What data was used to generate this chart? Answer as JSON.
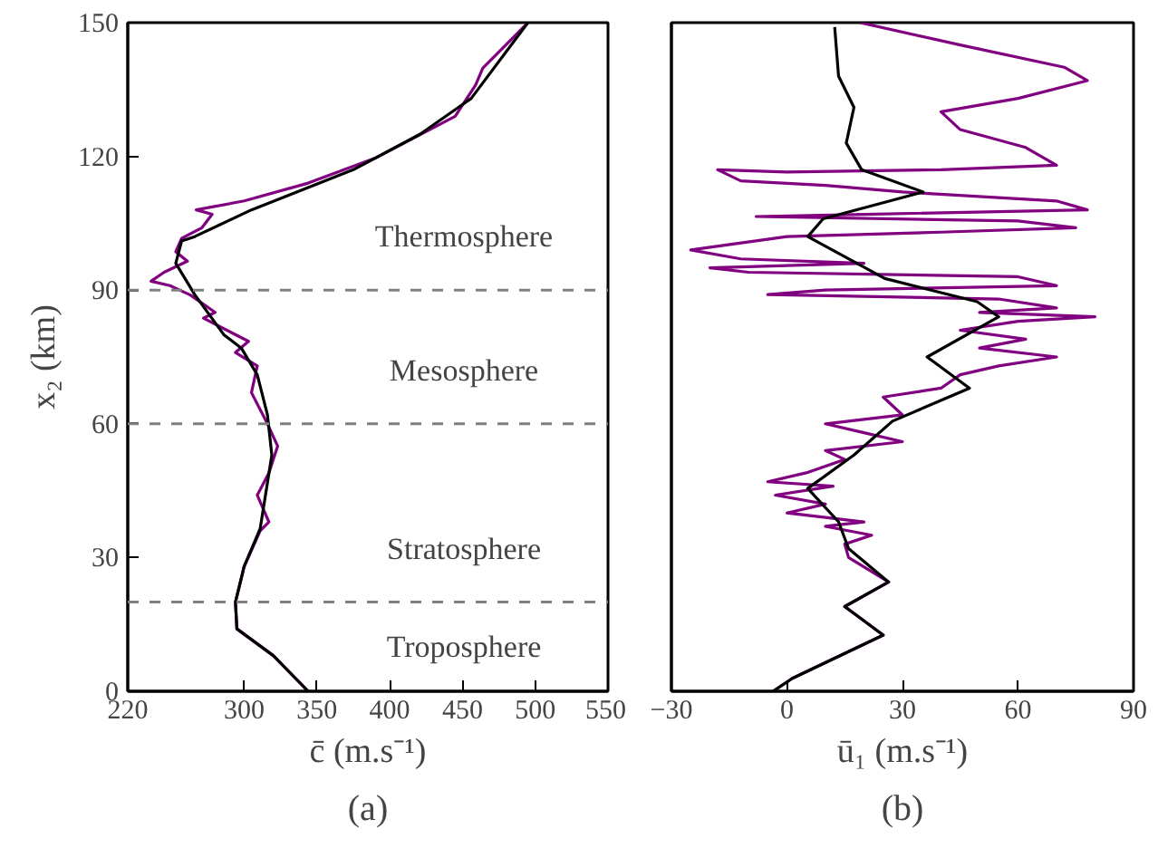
{
  "chart_data": [
    {
      "type": "line",
      "xlabel": "c̄ (m.s⁻¹)",
      "ylabel": "x₂ (km)",
      "subtitle": "(a)",
      "xlim": [
        220,
        550
      ],
      "xticks": [
        220,
        300,
        350,
        400,
        450,
        500,
        550
      ],
      "ylim": [
        0,
        150
      ],
      "yticks": [
        0,
        30,
        60,
        90,
        120,
        150
      ],
      "grid": false,
      "series": [
        {
          "color": "#800080",
          "x": [
            344,
            320,
            295,
            294,
            300,
            311,
            317,
            309,
            317,
            323,
            316,
            305,
            309,
            294,
            303,
            272,
            280,
            263,
            249,
            236,
            245,
            261,
            253,
            257,
            271,
            278,
            267,
            300,
            344,
            390,
            445,
            459,
            464,
            495
          ],
          "values": [
            0,
            8,
            14,
            20,
            28,
            36,
            38,
            44,
            49,
            55,
            60,
            67,
            73,
            76,
            78.5,
            83.7,
            85,
            88.9,
            91,
            92,
            94,
            96.5,
            98.6,
            101.6,
            104,
            107,
            108,
            110,
            114,
            119.6,
            129,
            136,
            139.8,
            150
          ]
        },
        {
          "color": "#000000",
          "x": [
            344,
            320,
            295,
            294,
            300,
            311,
            319,
            316,
            309,
            298,
            286,
            266,
            253,
            257,
            266,
            305,
            375,
            421,
            456,
            495
          ],
          "values": [
            0,
            8,
            14,
            20,
            28,
            36.5,
            53,
            62,
            71,
            77,
            80,
            89,
            96,
            101,
            102,
            108,
            117,
            125,
            133,
            150
          ]
        }
      ],
      "ref_lines": [
        {
          "axis": "y",
          "value": 20,
          "color": "#808080",
          "line_style": "dashed"
        },
        {
          "axis": "y",
          "value": 60,
          "color": "#808080",
          "line_style": "dashed"
        },
        {
          "axis": "y",
          "value": 90,
          "color": "#808080",
          "line_style": "dashed"
        }
      ],
      "annotations": [
        "Thermosphere",
        "Mesosphere",
        "Stratosphere",
        "Troposphere"
      ]
    },
    {
      "type": "line",
      "xlabel": "ū₁ (m.s⁻¹)",
      "subtitle": "(b)",
      "xlim": [
        -30,
        90
      ],
      "xticks": [
        -30,
        0,
        30,
        60,
        90
      ],
      "ylim": [
        0,
        150
      ],
      "yticks": [
        0,
        30,
        60,
        90,
        120,
        150
      ],
      "tick_labels": "x",
      "grid": false,
      "series": [
        {
          "color": "#800080",
          "x": [
            -3.6,
            1.4,
            25,
            15,
            26.4,
            16,
            15,
            22,
            10,
            20,
            0,
            10,
            -3,
            12,
            -5,
            5,
            15,
            10,
            30,
            20,
            10,
            30,
            25,
            40,
            45,
            55,
            70,
            50,
            62,
            45,
            60,
            80,
            50,
            70,
            55,
            -5,
            10,
            70,
            60,
            -10,
            -20,
            20,
            -12,
            -25,
            0,
            40,
            75,
            60,
            -8,
            20,
            78,
            70,
            30,
            10,
            -12,
            -18,
            0,
            40,
            70,
            62,
            45,
            40,
            60,
            78,
            72,
            45,
            19
          ],
          "values": [
            0,
            2.9,
            12.6,
            19,
            24.5,
            30,
            33,
            35,
            37,
            38,
            40,
            42,
            44,
            46,
            47,
            49,
            52,
            54,
            56,
            58,
            60,
            62,
            66,
            68,
            71,
            73,
            75,
            77,
            79,
            81,
            83,
            84,
            85,
            86,
            88,
            89,
            90,
            91,
            93,
            94,
            95,
            96,
            97,
            99,
            102,
            103,
            104,
            105.5,
            106.5,
            107,
            108,
            110,
            112,
            113.5,
            114.5,
            117,
            116.5,
            117,
            118,
            122,
            126,
            130,
            133,
            137,
            140,
            145,
            150
          ]
        },
        {
          "color": "#000000",
          "x": [
            -3.6,
            1.4,
            25,
            15,
            26.4,
            16,
            13.4,
            5.4,
            17.4,
            27.4,
            47.4,
            36.4,
            55,
            49.4,
            25.4,
            5.4,
            9.4,
            35.4,
            19.4,
            15.4,
            17.4,
            13.4,
            12.4
          ],
          "values": [
            0,
            2.9,
            12.6,
            19,
            24.5,
            32,
            38,
            45.5,
            53,
            60.6,
            68,
            75,
            84,
            87.4,
            92.6,
            102,
            106,
            112,
            117,
            123,
            131,
            138,
            149
          ]
        }
      ]
    }
  ]
}
